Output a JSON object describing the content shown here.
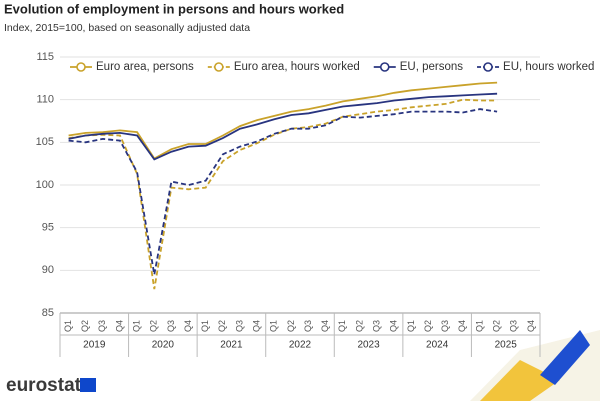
{
  "chart_data": {
    "type": "line",
    "title": "Evolution of employment in persons and hours worked",
    "subtitle": "Index, 2015=100, based on seasonally adjusted data",
    "brand": "eurostat",
    "categories": [
      "Q1",
      "Q2",
      "Q3",
      "Q4",
      "Q1",
      "Q2",
      "Q3",
      "Q4",
      "Q1",
      "Q2",
      "Q3",
      "Q4",
      "Q1",
      "Q2",
      "Q3",
      "Q4",
      "Q1",
      "Q2",
      "Q3",
      "Q4",
      "Q1",
      "Q2",
      "Q3",
      "Q4",
      "Q1",
      "Q2",
      "Q3",
      "Q4"
    ],
    "years": [
      "2019",
      "2020",
      "2021",
      "2022",
      "2023",
      "2024",
      "2025"
    ],
    "ylim": [
      85,
      115
    ],
    "yticks": [
      85,
      90,
      95,
      100,
      105,
      110,
      115
    ],
    "grid": true,
    "legend": "top",
    "series": [
      {
        "name": "Euro area, persons",
        "color": "#c9a22a",
        "dashed": false,
        "values": [
          105.8,
          106.1,
          106.2,
          106.4,
          106.2,
          103.1,
          104.2,
          104.8,
          104.8,
          105.8,
          106.9,
          107.6,
          108.1,
          108.6,
          108.9,
          109.3,
          109.8,
          110.1,
          110.4,
          110.8,
          111.1,
          111.3,
          111.5,
          111.7,
          111.9,
          112.0,
          null,
          null
        ]
      },
      {
        "name": "Euro area, hours worked",
        "color": "#c9a22a",
        "dashed": true,
        "values": [
          105.5,
          105.8,
          105.9,
          105.8,
          101.3,
          87.8,
          99.7,
          99.5,
          99.7,
          102.8,
          104.1,
          104.9,
          105.9,
          106.6,
          106.8,
          107.2,
          108.0,
          108.3,
          108.6,
          108.8,
          109.1,
          109.3,
          109.5,
          110.0,
          109.9,
          109.9,
          null,
          null
        ]
      },
      {
        "name": "EU, persons",
        "color": "#28347f",
        "dashed": false,
        "values": [
          105.4,
          105.8,
          106.0,
          106.1,
          105.8,
          103.0,
          103.9,
          104.5,
          104.6,
          105.5,
          106.6,
          107.1,
          107.7,
          108.2,
          108.4,
          108.8,
          109.2,
          109.4,
          109.6,
          109.9,
          110.1,
          110.3,
          110.4,
          110.5,
          110.6,
          110.7,
          null,
          null
        ]
      },
      {
        "name": "EU, hours worked",
        "color": "#28347f",
        "dashed": true,
        "values": [
          105.2,
          105.0,
          105.4,
          105.2,
          101.5,
          89.5,
          100.4,
          100.0,
          100.5,
          103.6,
          104.5,
          105.1,
          106.0,
          106.6,
          106.6,
          107.0,
          108.0,
          107.9,
          108.1,
          108.3,
          108.6,
          108.6,
          108.6,
          108.5,
          108.9,
          108.6,
          null,
          null
        ]
      }
    ]
  }
}
